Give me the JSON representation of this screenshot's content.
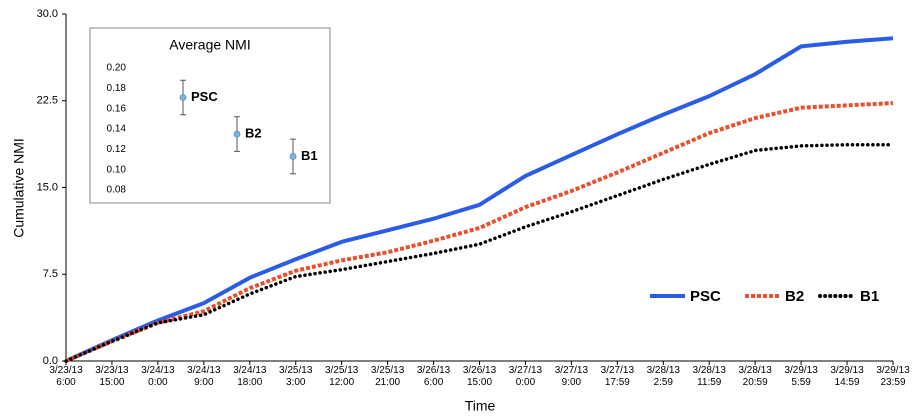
{
  "chart_data": [
    {
      "type": "line",
      "y_label": "Cumulative NMI",
      "x_label": "Time",
      "categories": [
        "3/23/13 6:00",
        "3/23/13 15:00",
        "3/24/13 0:00",
        "3/24/13 9:00",
        "3/24/13 18:00",
        "3/25/13 3:00",
        "3/25/13 12:00",
        "3/25/13 21:00",
        "3/26/13 6:00",
        "3/26/13 15:00",
        "3/27/13 0:00",
        "3/27/13 9:00",
        "3/27/13 17:59",
        "3/28/13 2:59",
        "3/28/13 11:59",
        "3/28/13 20:59",
        "3/29/13 5:59",
        "3/29/13 14:59",
        "3/29/13 23:59"
      ],
      "series": [
        {
          "name": "PSC",
          "color": "#2b5ce6",
          "dash": "solid",
          "values": [
            0,
            1.8,
            3.5,
            5.0,
            7.2,
            8.8,
            10.3,
            11.3,
            12.3,
            13.5,
            16.0,
            17.8,
            19.6,
            21.3,
            22.9,
            24.8,
            27.2,
            27.6,
            27.9
          ]
        },
        {
          "name": "B2",
          "color": "#e8502e",
          "dash": "dashed",
          "values": [
            0,
            1.7,
            3.3,
            4.3,
            6.3,
            7.8,
            8.7,
            9.4,
            10.4,
            11.5,
            13.3,
            14.7,
            16.3,
            18.0,
            19.7,
            21.0,
            21.9,
            22.1,
            22.3
          ]
        },
        {
          "name": "B1",
          "color": "#000000",
          "dash": "dotted",
          "values": [
            0,
            1.7,
            3.3,
            4.0,
            5.8,
            7.3,
            7.9,
            8.6,
            9.3,
            10.1,
            11.6,
            12.9,
            14.3,
            15.7,
            17.0,
            18.2,
            18.6,
            18.7,
            18.7
          ]
        }
      ],
      "ylim": [
        0,
        30
      ],
      "yticks": [
        {
          "value": 0,
          "label": "0.0"
        },
        7.5,
        {
          "value": 15,
          "label": "15.0"
        },
        22.5,
        {
          "value": 30,
          "label": "30.0"
        }
      ],
      "legend": "lower right"
    },
    {
      "type": "scatter",
      "title": "Average NMI",
      "categories": [
        "PSC",
        "B2",
        "B1"
      ],
      "values": [
        0.171,
        0.135,
        0.113
      ],
      "errors": [
        0.017,
        0.017,
        0.017
      ],
      "color": "#7fb4d8",
      "ylim": [
        0.08,
        0.2
      ],
      "yticks": [
        0.08,
        {
          "value": 0.1,
          "label": "0.10"
        },
        0.12,
        0.14,
        0.16,
        0.18,
        {
          "value": 0.2,
          "label": "0.20"
        }
      ]
    }
  ]
}
